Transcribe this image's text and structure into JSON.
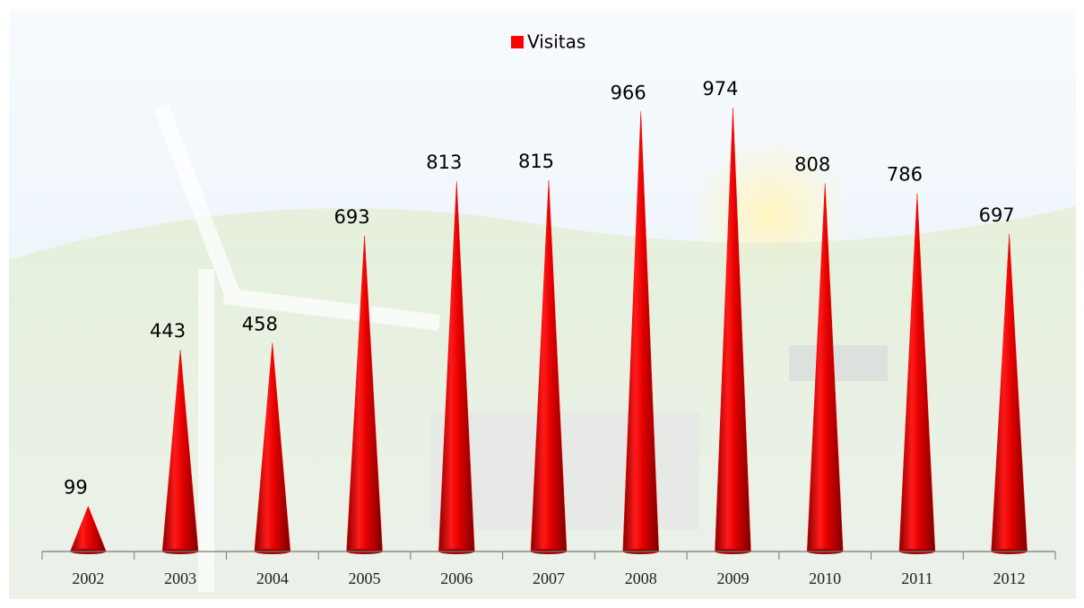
{
  "chart_data": {
    "type": "cone",
    "categories": [
      "2002",
      "2003",
      "2004",
      "2005",
      "2006",
      "2007",
      "2008",
      "2009",
      "2010",
      "2011",
      "2012"
    ],
    "series": [
      {
        "name": "Visitas",
        "color": "#ff0000",
        "values": [
          99,
          443,
          458,
          693,
          813,
          815,
          966,
          974,
          808,
          786,
          697
        ]
      }
    ],
    "ylim": [
      0,
      1000
    ],
    "legend": "top"
  }
}
